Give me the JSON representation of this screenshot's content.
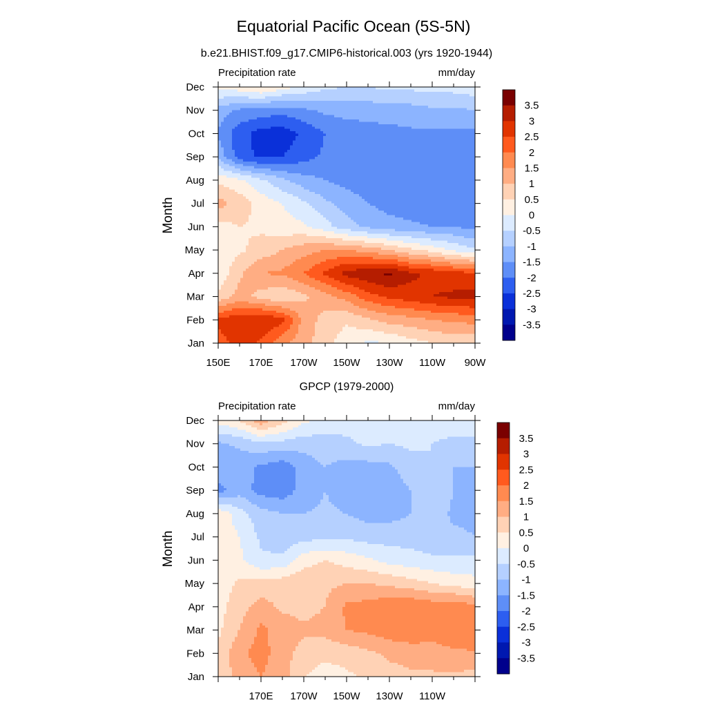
{
  "figure": {
    "title": "Equatorial Pacific Ocean (5S-5N)"
  },
  "colorbar": {
    "levels": [
      "3.5",
      "3",
      "2.5",
      "2",
      "1.5",
      "1",
      "0.5",
      "0",
      "-0.5",
      "-1",
      "-1.5",
      "-2",
      "-2.5",
      "-3",
      "-3.5"
    ],
    "colors": [
      "#7a0000",
      "#b51d00",
      "#e13400",
      "#ff5a1e",
      "#ff8a50",
      "#ffad83",
      "#ffd2b5",
      "#fff0e2",
      "#dcebff",
      "#b5d0ff",
      "#8cb4ff",
      "#5e8ef7",
      "#2d5ef0",
      "#0a30d9",
      "#0018b0",
      "#00008c"
    ]
  },
  "chart_data": [
    {
      "type": "heatmap",
      "title": "b.e21.BHIST.f09_g17.CMIP6-historical.003 (yrs 1920-1944)",
      "left_label": "Precipitation rate",
      "right_label": "mm/day",
      "ylabel": "Month",
      "y_categories": [
        "Jan",
        "Feb",
        "Mar",
        "Apr",
        "May",
        "Jun",
        "Jul",
        "Aug",
        "Sep",
        "Oct",
        "Nov",
        "Dec"
      ],
      "xlim": [
        150,
        270
      ],
      "x_ticks": [
        150,
        170,
        190,
        210,
        230,
        250,
        270
      ],
      "x_tick_labels": [
        "150E",
        "170E",
        "170W",
        "150W",
        "130W",
        "110W",
        "90W"
      ],
      "x": [
        150,
        160,
        170,
        180,
        190,
        200,
        210,
        220,
        230,
        240,
        250,
        260,
        270
      ],
      "z": [
        [
          2.3,
          2.7,
          2.4,
          1.6,
          1.2,
          0.7,
          0.2,
          -0.1,
          0.0,
          0.3,
          0.5,
          0.6,
          0.6
        ],
        [
          2.6,
          2.9,
          3.0,
          2.7,
          1.3,
          0.8,
          0.6,
          0.9,
          1.2,
          1.3,
          1.5,
          1.6,
          1.7
        ],
        [
          0.6,
          1.2,
          0.8,
          0.5,
          0.9,
          1.3,
          1.7,
          2.3,
          2.6,
          2.8,
          3.0,
          3.1,
          3.2
        ],
        [
          0.1,
          0.9,
          1.5,
          1.6,
          2.0,
          2.6,
          3.2,
          3.4,
          3.6,
          3.1,
          2.9,
          2.7,
          2.6
        ],
        [
          0.2,
          0.4,
          0.7,
          1.0,
          1.3,
          1.5,
          1.5,
          1.3,
          1.0,
          0.6,
          0.3,
          -0.1,
          -0.4
        ],
        [
          0.3,
          0.5,
          0.4,
          0.2,
          0.1,
          -0.3,
          -0.8,
          -1.1,
          -1.3,
          -1.4,
          -1.5,
          -1.5,
          -1.7
        ],
        [
          1.2,
          0.8,
          0.3,
          0.0,
          -0.4,
          -0.9,
          -1.2,
          -1.5,
          -1.7,
          -1.8,
          -1.9,
          -2.0,
          -2.0
        ],
        [
          0.4,
          0.1,
          -0.4,
          -0.9,
          -1.3,
          -1.5,
          -1.7,
          -1.8,
          -1.9,
          -1.9,
          -1.9,
          -1.9,
          -1.8
        ],
        [
          -1.1,
          -2.3,
          -2.6,
          -2.5,
          -2.2,
          -1.9,
          -1.8,
          -1.7,
          -1.7,
          -1.6,
          -1.6,
          -1.6,
          -1.6
        ],
        [
          -1.6,
          -2.3,
          -2.7,
          -2.8,
          -2.4,
          -2.0,
          -1.8,
          -1.7,
          -1.7,
          -1.6,
          -1.6,
          -1.6,
          -1.6
        ],
        [
          -1.2,
          -1.6,
          -1.7,
          -1.8,
          -1.6,
          -1.4,
          -1.3,
          -1.3,
          -1.2,
          -1.2,
          -1.1,
          -1.1,
          -1.0
        ],
        [
          0.1,
          0.3,
          0.6,
          0.2,
          -0.1,
          -0.4,
          -0.5,
          -0.5,
          -0.4,
          -0.4,
          -0.3,
          -0.3,
          -0.2
        ]
      ]
    },
    {
      "type": "heatmap",
      "title": "GPCP (1979-2000)",
      "left_label": "Precipitation rate",
      "right_label": "mm/day",
      "ylabel": "Month",
      "y_categories": [
        "Jan",
        "Feb",
        "Mar",
        "Apr",
        "May",
        "Jun",
        "Jul",
        "Aug",
        "Sep",
        "Oct",
        "Nov",
        "Dec"
      ],
      "xlim": [
        150,
        270
      ],
      "x_ticks": [
        170,
        190,
        210,
        230,
        250
      ],
      "x_tick_labels": [
        "170E",
        "170W",
        "150W",
        "130W",
        "110W"
      ],
      "x": [
        150,
        160,
        170,
        180,
        190,
        200,
        210,
        220,
        230,
        240,
        250,
        260,
        270
      ],
      "z": [
        [
          0.6,
          1.2,
          1.5,
          1.2,
          0.5,
          0.3,
          0.4,
          0.6,
          0.8,
          0.9,
          0.9,
          0.9,
          0.8
        ],
        [
          0.6,
          1.4,
          1.7,
          1.2,
          0.8,
          0.6,
          0.7,
          0.9,
          1.1,
          1.2,
          1.3,
          1.4,
          1.5
        ],
        [
          0.4,
          1.0,
          1.6,
          1.3,
          1.1,
          1.2,
          1.5,
          1.6,
          1.8,
          1.9,
          1.7,
          1.9,
          1.6
        ],
        [
          0.3,
          0.8,
          1.2,
          0.9,
          0.8,
          1.0,
          1.6,
          1.7,
          1.9,
          2.0,
          1.8,
          1.9,
          1.6
        ],
        [
          0.2,
          0.6,
          0.7,
          0.8,
          0.9,
          0.9,
          1.0,
          1.0,
          0.9,
          0.7,
          0.5,
          0.3,
          0.2
        ],
        [
          0.3,
          0.1,
          -0.4,
          -0.4,
          0.3,
          0.5,
          0.3,
          0.1,
          -0.2,
          -0.3,
          -0.4,
          -0.4,
          -0.4
        ],
        [
          0.4,
          0.0,
          -0.6,
          -0.8,
          -0.7,
          -0.6,
          -0.6,
          -0.7,
          -0.7,
          -0.7,
          -0.8,
          -0.9,
          -1.0
        ],
        [
          0.4,
          -0.3,
          -0.8,
          -1.0,
          -1.0,
          -0.9,
          -1.0,
          -1.2,
          -1.2,
          -1.0,
          -0.7,
          -1.1,
          -1.1
        ],
        [
          -1.7,
          -1.2,
          -1.7,
          -1.8,
          -1.3,
          -1.0,
          -1.3,
          -1.4,
          -1.3,
          -1.0,
          -0.6,
          -1.0,
          -1.1
        ],
        [
          -1.1,
          -1.3,
          -1.6,
          -1.8,
          -1.3,
          -1.0,
          -1.2,
          -1.2,
          -1.1,
          -0.7,
          -0.5,
          -1.0,
          -1.0
        ],
        [
          -1.1,
          -0.9,
          -0.6,
          -0.7,
          -0.8,
          -0.7,
          -0.6,
          -0.4,
          -0.5,
          -0.4,
          -0.5,
          -0.6,
          -0.6
        ],
        [
          0.2,
          0.5,
          1.3,
          0.7,
          0.1,
          -0.2,
          -0.3,
          -0.3,
          -0.2,
          -0.2,
          -0.3,
          -0.3,
          -0.3
        ]
      ]
    }
  ]
}
